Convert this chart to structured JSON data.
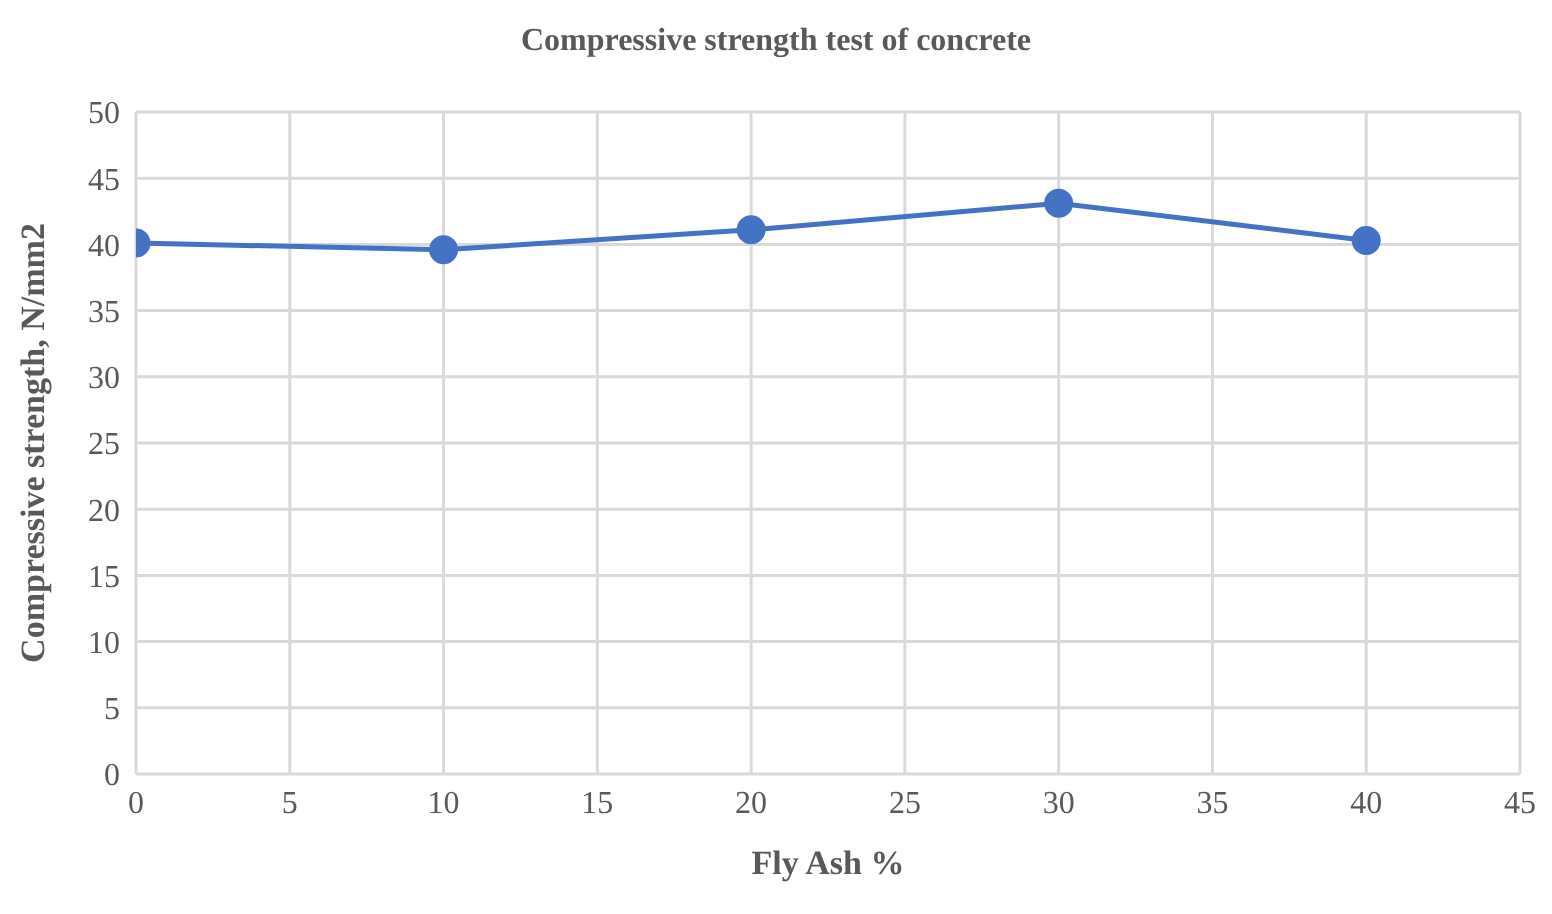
{
  "chart_data": {
    "type": "line",
    "title": "Compressive strength test of concrete",
    "xlabel": "Fly Ash %",
    "ylabel": "Compressive strength, N/mm2",
    "x": [
      0,
      10,
      20,
      30,
      40
    ],
    "series": [
      {
        "color": "#4472c4",
        "values": [
          40.1,
          39.6,
          41.1,
          43.1,
          40.3
        ]
      }
    ],
    "xlim": [
      0,
      45
    ],
    "xticks": [
      0,
      5,
      10,
      15,
      20,
      25,
      30,
      35,
      40,
      45
    ],
    "ylim": [
      0,
      50
    ],
    "yticks": [
      0,
      5,
      10,
      15,
      20,
      25,
      30,
      35,
      40,
      45,
      50
    ],
    "grid": true,
    "marker": "circle",
    "line_style": "solid",
    "legend": false
  }
}
